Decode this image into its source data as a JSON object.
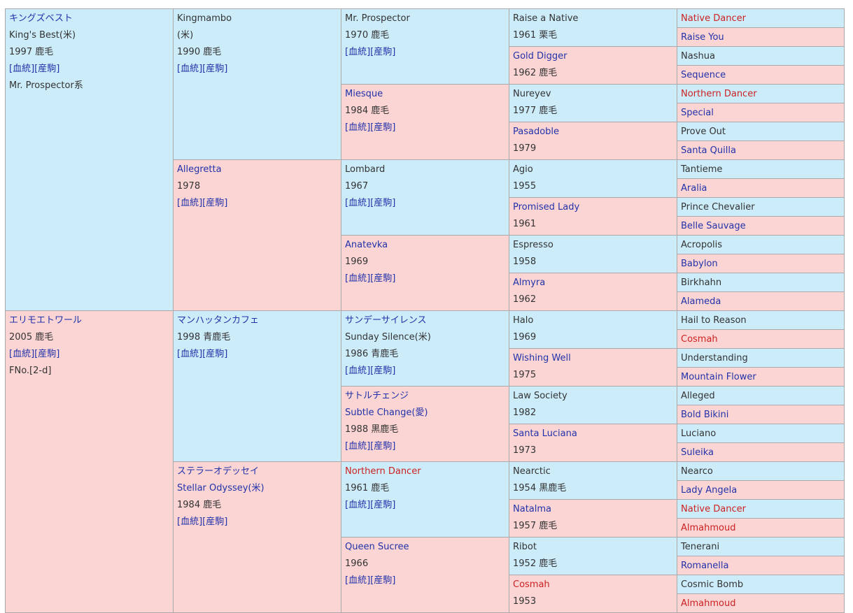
{
  "colors": {
    "male_bg": "#ccecfa",
    "female_bg": "#fbd4d4",
    "link": "#2233aa",
    "highlight": "#cc2222",
    "border": "#aaaaaa"
  },
  "link_labels": {
    "bloodline": "[血統]",
    "foals": "[産駒]"
  },
  "g1": [
    {
      "name_ja": "キングズベスト",
      "name_en": "King's Best(米)",
      "info": "1997 鹿毛",
      "note": "Mr. Prospector系"
    },
    {
      "name_ja": "エリモエトワール",
      "info": "2005 鹿毛",
      "note": "FNo.[2-d]"
    }
  ],
  "g2": [
    {
      "name": "Kingmambo",
      "origin": "(米)",
      "info": "1990 鹿毛"
    },
    {
      "name": "Allegretta",
      "info": "1978"
    },
    {
      "name": "マンハッタンカフェ",
      "info": "1998 青鹿毛"
    },
    {
      "name_ja": "ステラーオデッセイ",
      "name_en": "Stellar Odyssey(米)",
      "info": "1984 鹿毛"
    }
  ],
  "g3": [
    {
      "name": "Mr. Prospector",
      "info": "1970 鹿毛"
    },
    {
      "name": "Miesque",
      "info": "1984 鹿毛"
    },
    {
      "name": "Lombard",
      "info": "1967"
    },
    {
      "name": "Anatevka",
      "info": "1969"
    },
    {
      "name_ja": "サンデーサイレンス",
      "name_en": "Sunday Silence(米)",
      "info": "1986 青鹿毛"
    },
    {
      "name_ja": "サトルチェンジ",
      "name_en": "Subtle Change(愛)",
      "info": "1988 黒鹿毛"
    },
    {
      "name": "Northern Dancer",
      "info": "1961 鹿毛"
    },
    {
      "name": "Queen Sucree",
      "info": "1966"
    }
  ],
  "g4": [
    {
      "name": "Raise a Native",
      "info": "1961 栗毛"
    },
    {
      "name": "Gold Digger",
      "info": "1962 鹿毛"
    },
    {
      "name": "Nureyev",
      "info": "1977 鹿毛"
    },
    {
      "name": "Pasadoble",
      "info": "1979"
    },
    {
      "name": "Agio",
      "info": "1955"
    },
    {
      "name": "Promised Lady",
      "info": "1961"
    },
    {
      "name": "Espresso",
      "info": "1958"
    },
    {
      "name": "Almyra",
      "info": "1962"
    },
    {
      "name": "Halo",
      "info": "1969"
    },
    {
      "name": "Wishing Well",
      "info": "1975"
    },
    {
      "name": "Law Society",
      "info": "1982"
    },
    {
      "name": "Santa Luciana",
      "info": "1973"
    },
    {
      "name": "Nearctic",
      "info": "1954 黒鹿毛"
    },
    {
      "name": "Natalma",
      "info": "1957 鹿毛"
    },
    {
      "name": "Ribot",
      "info": "1952 鹿毛"
    },
    {
      "name": "Cosmah",
      "info": "1953"
    }
  ],
  "g5": [
    "Native Dancer",
    "Raise You",
    "Nashua",
    "Sequence",
    "Northern Dancer",
    "Special",
    "Prove Out",
    "Santa Quilla",
    "Tantieme",
    "Aralia",
    "Prince Chevalier",
    "Belle Sauvage",
    "Acropolis",
    "Babylon",
    "Birkhahn",
    "Alameda",
    "Hail to Reason",
    "Cosmah",
    "Understanding",
    "Mountain Flower",
    "Alleged",
    "Bold Bikini",
    "Luciano",
    "Suleika",
    "Nearco",
    "Lady Angela",
    "Native Dancer",
    "Almahmoud",
    "Tenerani",
    "Romanella",
    "Cosmic Bomb",
    "Almahmoud"
  ]
}
